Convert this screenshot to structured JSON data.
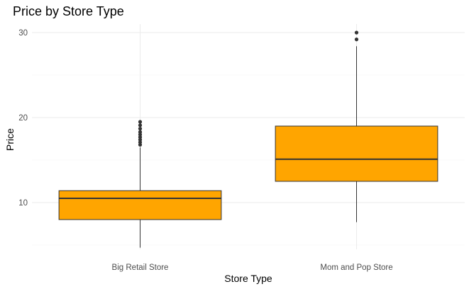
{
  "chart_data": {
    "type": "boxplot",
    "title": "Price by Store Type",
    "xlabel": "Store Type",
    "ylabel": "Price",
    "ylim": [
      4.5,
      31
    ],
    "yticks": [
      10,
      20,
      30
    ],
    "grid": true,
    "colors": {
      "box_fill": "#FFA500",
      "box_stroke": "#333333",
      "grid": "#EBEBEB"
    },
    "categories": [
      "Big Retail Store",
      "Mom and Pop Store"
    ],
    "boxes": [
      {
        "category": "Big Retail Store",
        "min": 4.7,
        "q1": 8.0,
        "median": 10.5,
        "q3": 11.4,
        "max": 16.5,
        "outliers": [
          16.8,
          17.1,
          17.4,
          17.7,
          18.0,
          18.3,
          18.7,
          19.1,
          19.5
        ]
      },
      {
        "category": "Mom and Pop Store",
        "min": 7.7,
        "q1": 12.5,
        "median": 15.1,
        "q3": 19.0,
        "max": 28.4,
        "outliers": [
          29.2,
          30.0
        ]
      }
    ]
  }
}
